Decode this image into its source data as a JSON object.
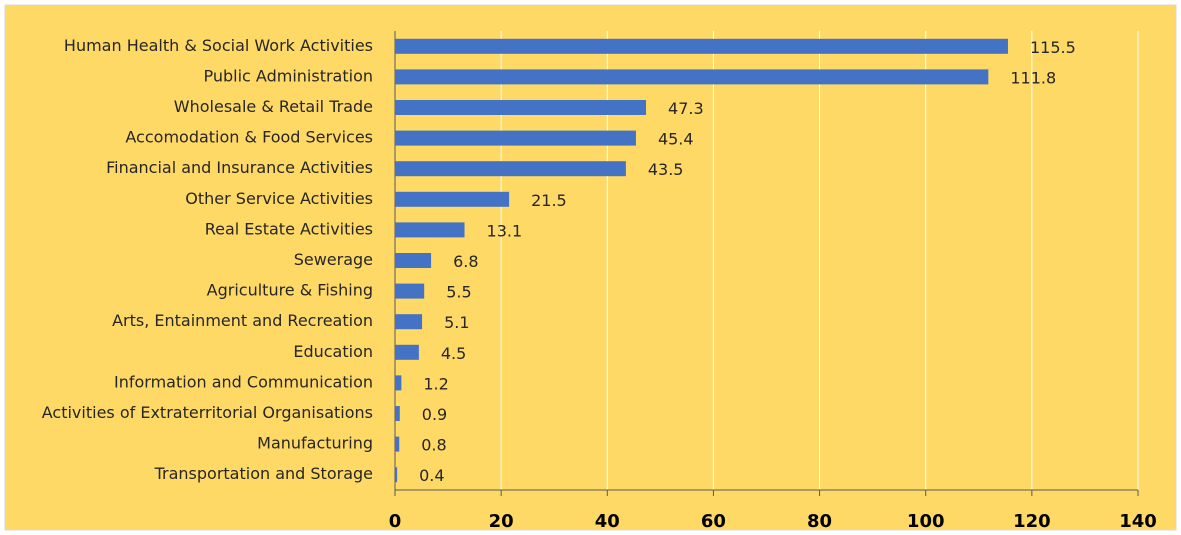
{
  "chart_data": {
    "type": "bar",
    "orientation": "horizontal",
    "categories": [
      "Human Health & Social Work Activities",
      "Public Administration",
      "Wholesale & Retail Trade",
      "Accomodation & Food Services",
      "Financial and Insurance Activities",
      "Other Service Activities",
      "Real Estate Activities",
      "Sewerage",
      "Agriculture & Fishing",
      "Arts, Entainment and Recreation",
      "Education",
      "Information and Communication",
      "Activities of Extraterritorial Organisations",
      "Manufacturing",
      "Transportation and Storage"
    ],
    "values": [
      115.5,
      111.8,
      47.3,
      45.4,
      43.5,
      21.5,
      13.1,
      6.8,
      5.5,
      5.1,
      4.5,
      1.2,
      0.9,
      0.8,
      0.4
    ],
    "color": "#4472c4",
    "xlim": [
      0,
      140
    ],
    "xticks": [
      0,
      20,
      40,
      60,
      80,
      100,
      120,
      140
    ],
    "grid": true
  }
}
